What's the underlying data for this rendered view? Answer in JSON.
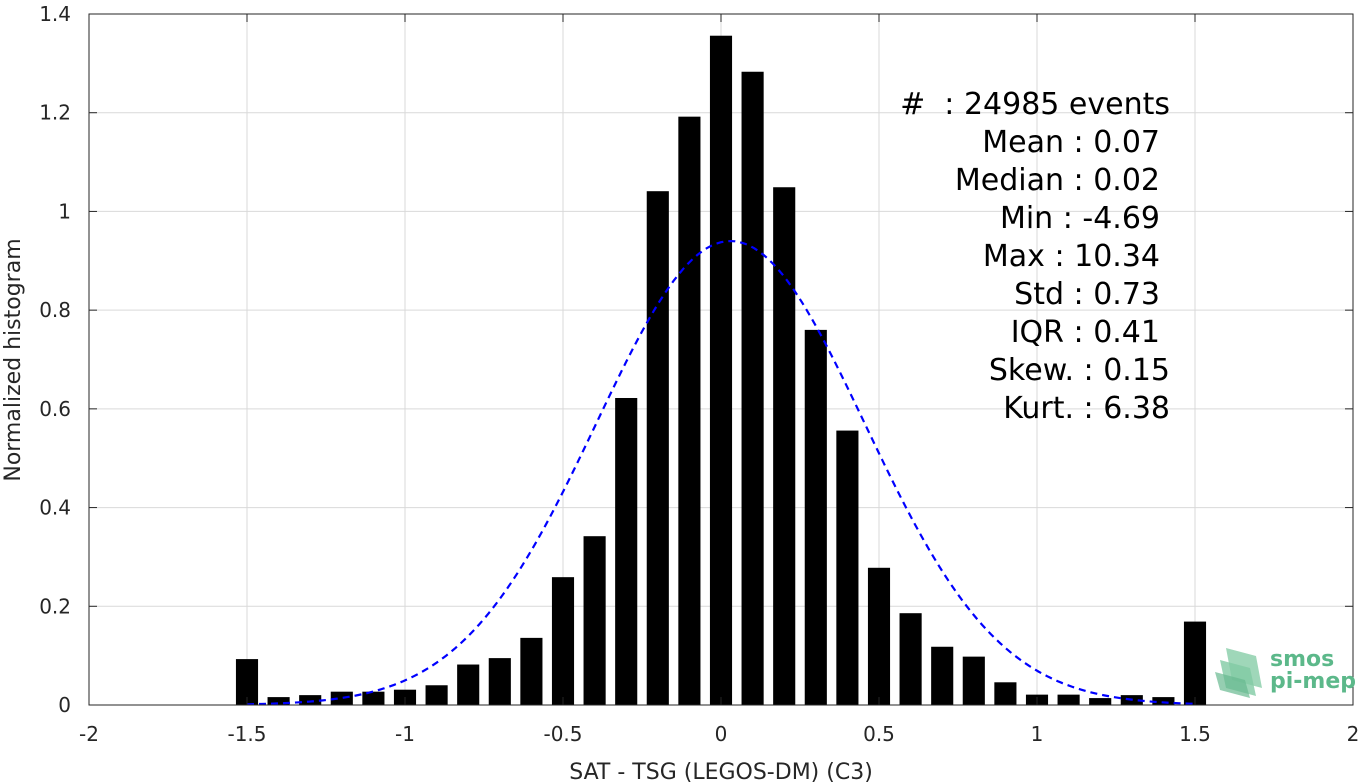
{
  "chart_data": {
    "type": "bar",
    "xlabel": "SAT - TSG (LEGOS-DM) (C3)",
    "ylabel": "Normalized histogram",
    "xlim": [
      -2,
      2
    ],
    "ylim": [
      0,
      1.4
    ],
    "xticks": [
      "-2",
      "-1.5",
      "-1",
      "-0.5",
      "0",
      "0.5",
      "1",
      "1.5",
      "2"
    ],
    "yticks": [
      "0",
      "0.2",
      "0.4",
      "0.6",
      "0.8",
      "1",
      "1.2",
      "1.4"
    ],
    "bar_width": 0.07,
    "bars": {
      "x": [
        -1.5,
        -1.4,
        -1.3,
        -1.2,
        -1.1,
        -1.0,
        -0.9,
        -0.8,
        -0.7,
        -0.6,
        -0.5,
        -0.4,
        -0.3,
        -0.2,
        -0.1,
        0.0,
        0.1,
        0.2,
        0.3,
        0.4,
        0.5,
        0.6,
        0.7,
        0.8,
        0.9,
        1.0,
        1.1,
        1.2,
        1.3,
        1.4,
        1.5
      ],
      "values": [
        0.093,
        0.016,
        0.02,
        0.027,
        0.027,
        0.031,
        0.04,
        0.082,
        0.095,
        0.136,
        0.259,
        0.342,
        0.622,
        1.041,
        1.192,
        1.356,
        1.283,
        1.049,
        0.76,
        0.556,
        0.278,
        0.186,
        0.118,
        0.098,
        0.046,
        0.021,
        0.021,
        0.014,
        0.02,
        0.016,
        0.169
      ],
      "color": "#000000"
    },
    "fit_curve": {
      "style": "dashed",
      "color": "#0000ff",
      "mean": 0.03,
      "std": 0.425,
      "peak": 0.94,
      "x_range": [
        -1.5,
        1.5
      ]
    },
    "grid": true
  },
  "stats": {
    "events_line": "#  : 24985 events",
    "mean_line": "Mean : 0.07",
    "median_line": "Median : 0.02",
    "min_line": "Min : -4.69",
    "max_line": "Max : 10.34",
    "std_line": "Std : 0.73",
    "iqr_line": "IQR : 0.41",
    "skew_line": "Skew. : 0.15",
    "kurt_line": "Kurt. : 6.38"
  },
  "logo": {
    "line1": "smos",
    "line2": "pi-mep",
    "color": "#5cb88a"
  }
}
